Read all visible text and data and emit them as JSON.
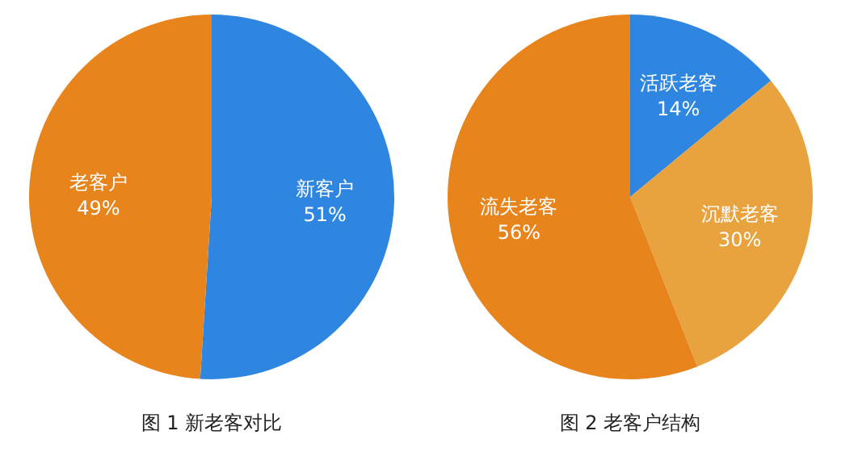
{
  "chart_data": [
    {
      "type": "pie",
      "title": "图 1 新老客对比",
      "categories": [
        "新客户",
        "老客户"
      ],
      "values": [
        51,
        49
      ],
      "value_labels": [
        "51%",
        "49%"
      ],
      "colors": [
        "#2f86e0",
        "#e8841c"
      ]
    },
    {
      "type": "pie",
      "title": "图 2 老客户结构",
      "categories": [
        "活跃老客",
        "沉默老客",
        "流失老客"
      ],
      "values": [
        14,
        30,
        56
      ],
      "value_labels": [
        "14%",
        "30%",
        "56%"
      ],
      "colors": [
        "#2f86e0",
        "#e8a33e",
        "#e8841c"
      ]
    }
  ]
}
